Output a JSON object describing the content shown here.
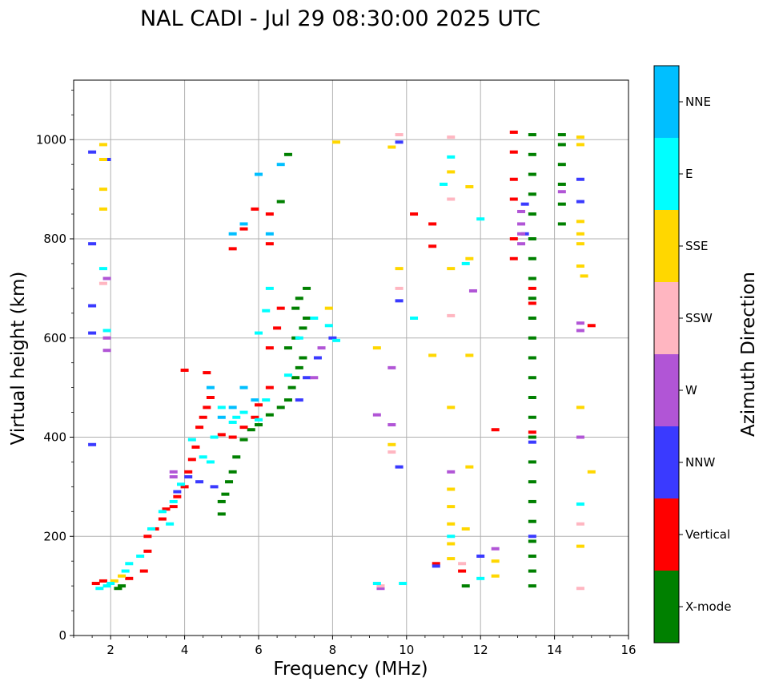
{
  "chart_data": {
    "type": "scatter",
    "title": "NAL CADI - Jul 29 08:30:00 2025 UTC",
    "xlabel": "Frequency (MHz)",
    "ylabel": "Virtual height (km)",
    "xlim": [
      1,
      16
    ],
    "ylim": [
      0,
      1120
    ],
    "xticks": [
      2,
      4,
      6,
      8,
      10,
      12,
      14,
      16
    ],
    "yticks": [
      0,
      200,
      400,
      600,
      800,
      1000
    ],
    "grid": true,
    "colorbar": {
      "label": "Azimuth Direction",
      "categories": [
        {
          "name": "X-mode",
          "color": "#008000"
        },
        {
          "name": "Vertical",
          "color": "#ff0000"
        },
        {
          "name": "NNW",
          "color": "#3a3aff"
        },
        {
          "name": "W",
          "color": "#b155d6"
        },
        {
          "name": "SSW",
          "color": "#ffb6c1"
        },
        {
          "name": "SSE",
          "color": "#ffd700"
        },
        {
          "name": "E",
          "color": "#00ffff"
        },
        {
          "name": "NNE",
          "color": "#00bfff"
        }
      ]
    },
    "series": [
      {
        "name": "X-mode",
        "points": [
          [
            2.2,
            95
          ],
          [
            2.3,
            100
          ],
          [
            5.0,
            245
          ],
          [
            5.0,
            270
          ],
          [
            5.1,
            285
          ],
          [
            5.2,
            310
          ],
          [
            5.3,
            330
          ],
          [
            5.4,
            360
          ],
          [
            5.6,
            395
          ],
          [
            5.8,
            415
          ],
          [
            6.0,
            425
          ],
          [
            6.3,
            445
          ],
          [
            6.6,
            460
          ],
          [
            6.8,
            475
          ],
          [
            6.9,
            500
          ],
          [
            7.0,
            520
          ],
          [
            7.1,
            540
          ],
          [
            7.2,
            560
          ],
          [
            6.8,
            580
          ],
          [
            7.0,
            600
          ],
          [
            7.2,
            620
          ],
          [
            7.3,
            640
          ],
          [
            7.0,
            660
          ],
          [
            7.1,
            680
          ],
          [
            7.3,
            700
          ],
          [
            6.6,
            875
          ],
          [
            6.8,
            970
          ],
          [
            13.4,
            100
          ],
          [
            13.4,
            130
          ],
          [
            13.4,
            160
          ],
          [
            13.4,
            190
          ],
          [
            13.4,
            230
          ],
          [
            13.4,
            270
          ],
          [
            13.4,
            310
          ],
          [
            13.4,
            350
          ],
          [
            13.4,
            400
          ],
          [
            13.4,
            440
          ],
          [
            13.4,
            480
          ],
          [
            13.4,
            520
          ],
          [
            13.4,
            560
          ],
          [
            13.4,
            600
          ],
          [
            13.4,
            640
          ],
          [
            13.4,
            680
          ],
          [
            13.4,
            720
          ],
          [
            13.4,
            760
          ],
          [
            13.4,
            800
          ],
          [
            13.4,
            850
          ],
          [
            13.4,
            890
          ],
          [
            13.4,
            930
          ],
          [
            13.4,
            970
          ],
          [
            13.4,
            1010
          ],
          [
            14.2,
            830
          ],
          [
            14.2,
            870
          ],
          [
            14.2,
            910
          ],
          [
            14.2,
            950
          ],
          [
            14.2,
            990
          ],
          [
            14.2,
            1010
          ],
          [
            11.6,
            100
          ]
        ]
      },
      {
        "name": "Vertical",
        "points": [
          [
            1.6,
            105
          ],
          [
            1.8,
            110
          ],
          [
            2.5,
            115
          ],
          [
            2.9,
            130
          ],
          [
            3.0,
            170
          ],
          [
            3.0,
            200
          ],
          [
            3.2,
            215
          ],
          [
            3.4,
            235
          ],
          [
            3.5,
            255
          ],
          [
            3.7,
            260
          ],
          [
            3.8,
            280
          ],
          [
            4.0,
            300
          ],
          [
            4.1,
            330
          ],
          [
            4.2,
            355
          ],
          [
            4.3,
            380
          ],
          [
            4.4,
            420
          ],
          [
            4.5,
            440
          ],
          [
            4.6,
            460
          ],
          [
            4.7,
            480
          ],
          [
            4.6,
            530
          ],
          [
            4.0,
            535
          ],
          [
            5.0,
            405
          ],
          [
            5.3,
            400
          ],
          [
            5.6,
            420
          ],
          [
            5.9,
            440
          ],
          [
            6.0,
            465
          ],
          [
            6.3,
            500
          ],
          [
            6.3,
            580
          ],
          [
            6.5,
            620
          ],
          [
            6.6,
            660
          ],
          [
            5.3,
            780
          ],
          [
            5.6,
            820
          ],
          [
            5.9,
            860
          ],
          [
            6.3,
            850
          ],
          [
            6.3,
            790
          ],
          [
            10.2,
            850
          ],
          [
            10.7,
            785
          ],
          [
            10.7,
            830
          ],
          [
            11.5,
            130
          ],
          [
            10.8,
            145
          ],
          [
            12.4,
            415
          ],
          [
            12.9,
            760
          ],
          [
            12.9,
            800
          ],
          [
            12.9,
            880
          ],
          [
            12.9,
            920
          ],
          [
            12.9,
            975
          ],
          [
            12.9,
            1015
          ],
          [
            15.0,
            625
          ],
          [
            13.4,
            410
          ],
          [
            13.4,
            670
          ],
          [
            13.4,
            700
          ]
        ]
      },
      {
        "name": "NNW",
        "points": [
          [
            1.5,
            385
          ],
          [
            1.5,
            610
          ],
          [
            1.5,
            665
          ],
          [
            1.5,
            790
          ],
          [
            1.5,
            975
          ],
          [
            1.9,
            960
          ],
          [
            3.8,
            290
          ],
          [
            4.1,
            320
          ],
          [
            4.4,
            310
          ],
          [
            4.8,
            300
          ],
          [
            7.1,
            475
          ],
          [
            7.3,
            520
          ],
          [
            7.6,
            560
          ],
          [
            8.0,
            600
          ],
          [
            9.8,
            340
          ],
          [
            9.8,
            675
          ],
          [
            9.8,
            995
          ],
          [
            10.8,
            140
          ],
          [
            12.0,
            160
          ],
          [
            13.2,
            810
          ],
          [
            13.2,
            870
          ],
          [
            13.4,
            200
          ],
          [
            13.4,
            390
          ],
          [
            14.7,
            875
          ],
          [
            14.7,
            920
          ]
        ]
      },
      {
        "name": "W",
        "points": [
          [
            3.7,
            320
          ],
          [
            3.7,
            330
          ],
          [
            7.5,
            520
          ],
          [
            7.7,
            580
          ],
          [
            9.2,
            445
          ],
          [
            9.3,
            95
          ],
          [
            9.6,
            540
          ],
          [
            9.6,
            425
          ],
          [
            11.2,
            330
          ],
          [
            11.8,
            695
          ],
          [
            12.4,
            175
          ],
          [
            13.1,
            790
          ],
          [
            13.1,
            810
          ],
          [
            13.1,
            830
          ],
          [
            13.1,
            855
          ],
          [
            14.7,
            400
          ],
          [
            14.7,
            615
          ],
          [
            14.7,
            630
          ],
          [
            14.2,
            895
          ],
          [
            1.9,
            575
          ],
          [
            1.9,
            600
          ],
          [
            1.9,
            720
          ]
        ]
      },
      {
        "name": "SSW",
        "points": [
          [
            1.8,
            710
          ],
          [
            9.3,
            100
          ],
          [
            9.6,
            370
          ],
          [
            9.8,
            700
          ],
          [
            9.8,
            1010
          ],
          [
            11.2,
            645
          ],
          [
            11.2,
            1005
          ],
          [
            11.2,
            880
          ],
          [
            14.7,
            95
          ],
          [
            14.7,
            225
          ],
          [
            11.5,
            145
          ]
        ]
      },
      {
        "name": "SSE",
        "points": [
          [
            1.8,
            860
          ],
          [
            1.8,
            900
          ],
          [
            1.8,
            960
          ],
          [
            1.8,
            990
          ],
          [
            2.1,
            110
          ],
          [
            2.3,
            120
          ],
          [
            7.9,
            660
          ],
          [
            8.1,
            995
          ],
          [
            9.2,
            580
          ],
          [
            9.6,
            385
          ],
          [
            9.6,
            985
          ],
          [
            9.8,
            740
          ],
          [
            10.7,
            565
          ],
          [
            11.2,
            155
          ],
          [
            11.2,
            185
          ],
          [
            11.2,
            225
          ],
          [
            11.2,
            260
          ],
          [
            11.2,
            295
          ],
          [
            11.2,
            460
          ],
          [
            11.2,
            740
          ],
          [
            11.2,
            935
          ],
          [
            11.7,
            340
          ],
          [
            11.7,
            565
          ],
          [
            11.7,
            760
          ],
          [
            11.7,
            905
          ],
          [
            12.4,
            120
          ],
          [
            12.4,
            150
          ],
          [
            14.7,
            180
          ],
          [
            14.7,
            460
          ],
          [
            14.7,
            745
          ],
          [
            14.7,
            790
          ],
          [
            14.7,
            810
          ],
          [
            14.7,
            835
          ],
          [
            14.8,
            725
          ],
          [
            15.0,
            330
          ],
          [
            14.7,
            990
          ],
          [
            14.7,
            1005
          ],
          [
            11.6,
            215
          ]
        ]
      },
      {
        "name": "E",
        "points": [
          [
            1.7,
            95
          ],
          [
            1.9,
            100
          ],
          [
            2.0,
            105
          ],
          [
            2.4,
            130
          ],
          [
            2.5,
            145
          ],
          [
            2.8,
            160
          ],
          [
            3.1,
            215
          ],
          [
            3.4,
            250
          ],
          [
            3.7,
            270
          ],
          [
            3.9,
            305
          ],
          [
            4.2,
            395
          ],
          [
            4.5,
            360
          ],
          [
            4.8,
            400
          ],
          [
            5.0,
            460
          ],
          [
            5.3,
            430
          ],
          [
            5.6,
            450
          ],
          [
            6.0,
            435
          ],
          [
            6.2,
            475
          ],
          [
            6.3,
            700
          ],
          [
            6.2,
            655
          ],
          [
            6.0,
            610
          ],
          [
            6.8,
            525
          ],
          [
            7.1,
            600
          ],
          [
            7.5,
            640
          ],
          [
            7.9,
            625
          ],
          [
            8.1,
            595
          ],
          [
            9.2,
            105
          ],
          [
            9.9,
            105
          ],
          [
            10.2,
            640
          ],
          [
            11.0,
            910
          ],
          [
            11.2,
            965
          ],
          [
            11.2,
            200
          ],
          [
            11.6,
            750
          ],
          [
            12.0,
            115
          ],
          [
            12.0,
            840
          ],
          [
            14.7,
            265
          ],
          [
            4.7,
            350
          ],
          [
            5.4,
            440
          ],
          [
            3.6,
            225
          ],
          [
            1.8,
            740
          ],
          [
            1.9,
            615
          ]
        ]
      },
      {
        "name": "NNE",
        "points": [
          [
            4.7,
            500
          ],
          [
            5.0,
            440
          ],
          [
            5.3,
            460
          ],
          [
            5.6,
            500
          ],
          [
            5.9,
            475
          ],
          [
            5.3,
            810
          ],
          [
            5.6,
            830
          ],
          [
            6.0,
            930
          ],
          [
            6.3,
            810
          ],
          [
            6.6,
            950
          ]
        ]
      }
    ]
  }
}
